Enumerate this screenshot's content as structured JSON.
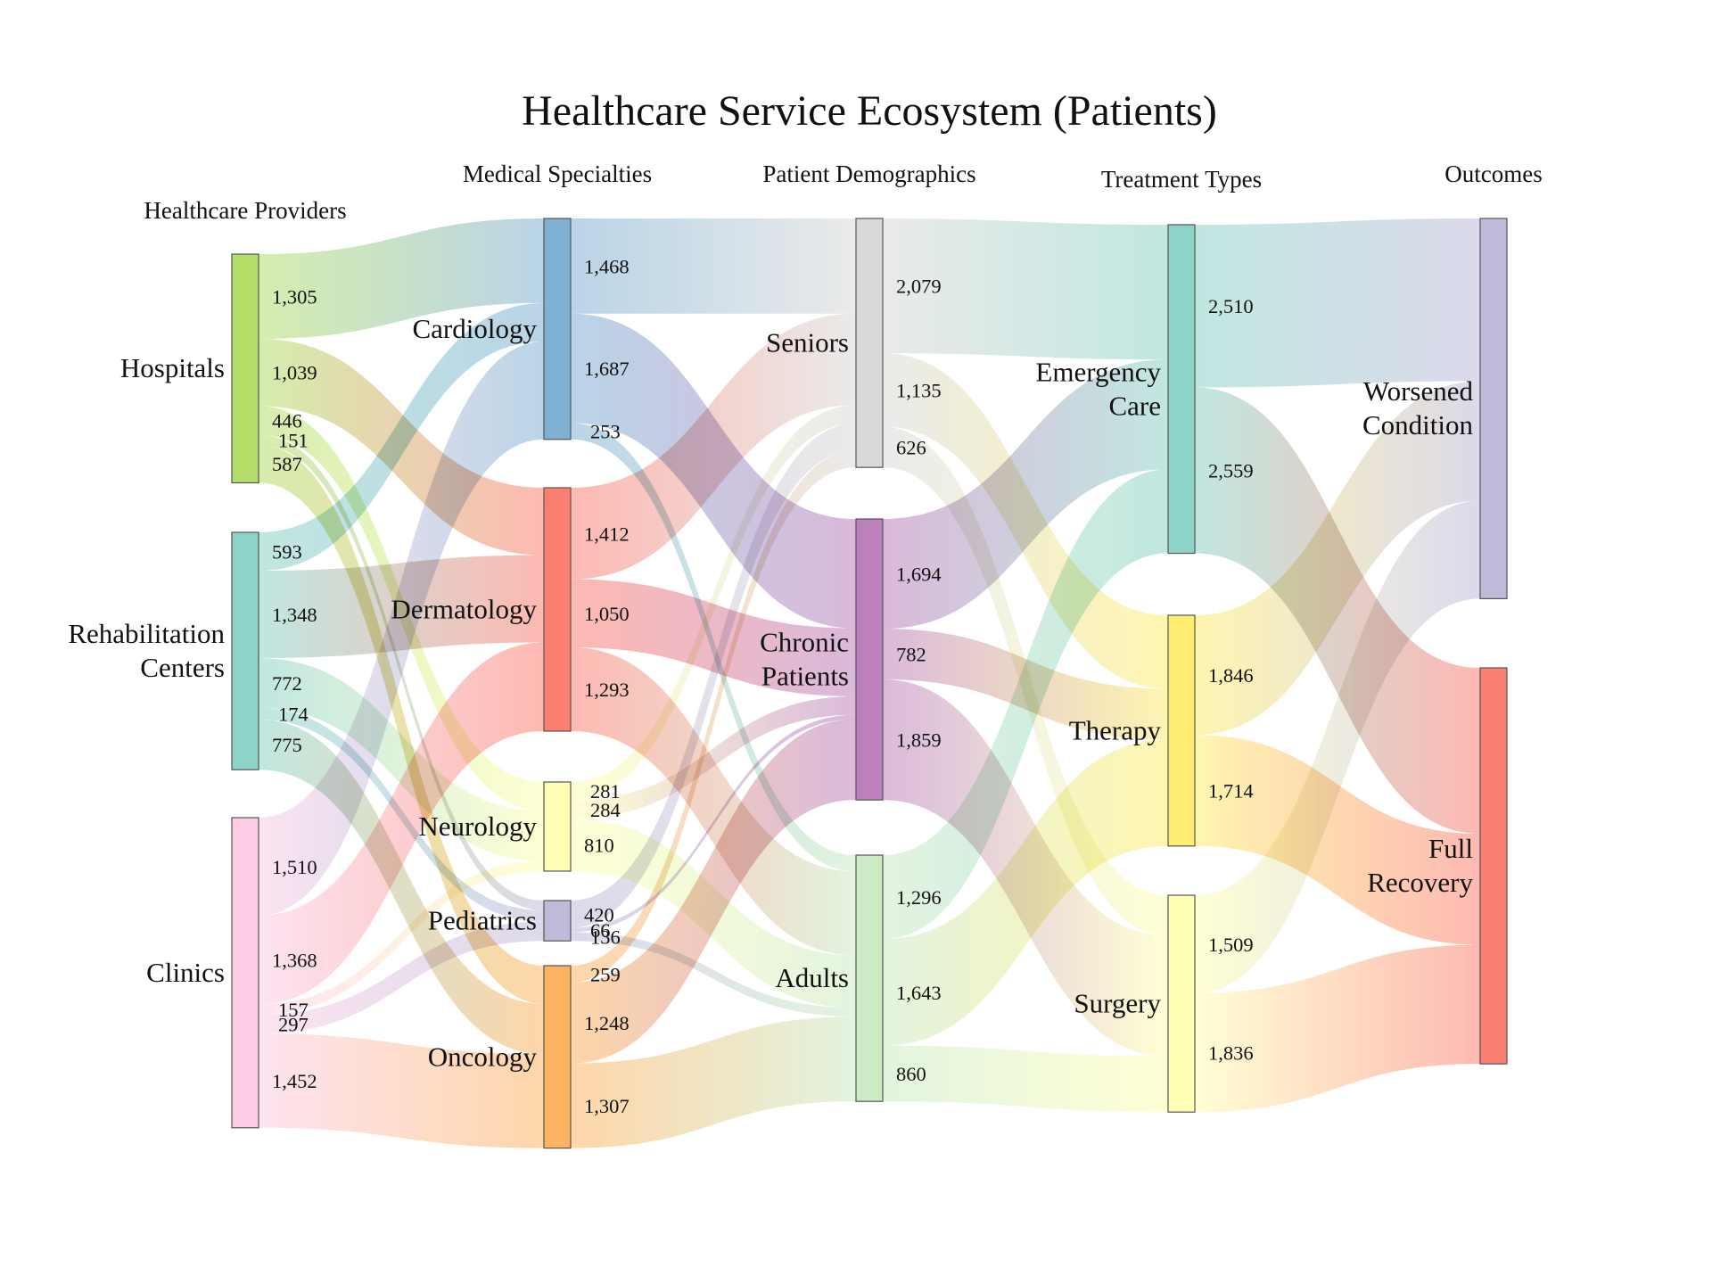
{
  "title": "Healthcare Service Ecosystem (Patients)",
  "column_headers": [
    "Healthcare Providers",
    "Medical Specialties",
    "Patient Demographics",
    "Treatment Types",
    "Outcomes"
  ],
  "nodes": [
    {
      "id": "hospitals",
      "label_lines": [
        "Hospitals"
      ],
      "color": "#b3de69"
    },
    {
      "id": "rehab",
      "label_lines": [
        "Rehabilitation",
        "Centers"
      ],
      "color": "#8dd3c7"
    },
    {
      "id": "clinics",
      "label_lines": [
        "Clinics"
      ],
      "color": "#fccde5"
    },
    {
      "id": "cardiology",
      "label_lines": [
        "Cardiology"
      ],
      "color": "#80b1d3"
    },
    {
      "id": "dermatology",
      "label_lines": [
        "Dermatology"
      ],
      "color": "#fb8072"
    },
    {
      "id": "neurology",
      "label_lines": [
        "Neurology"
      ],
      "color": "#ffffb3"
    },
    {
      "id": "pediatrics",
      "label_lines": [
        "Pediatrics"
      ],
      "color": "#bebada"
    },
    {
      "id": "oncology",
      "label_lines": [
        "Oncology"
      ],
      "color": "#fdb462"
    },
    {
      "id": "seniors",
      "label_lines": [
        "Seniors"
      ],
      "color": "#d9d9d9"
    },
    {
      "id": "chronic",
      "label_lines": [
        "Chronic",
        "Patients"
      ],
      "color": "#bc80bd"
    },
    {
      "id": "adults",
      "label_lines": [
        "Adults"
      ],
      "color": "#ccebc5"
    },
    {
      "id": "emergency",
      "label_lines": [
        "Emergency",
        "Care"
      ],
      "color": "#8dd3c7"
    },
    {
      "id": "therapy",
      "label_lines": [
        "Therapy"
      ],
      "color": "#ffed6f"
    },
    {
      "id": "surgery",
      "label_lines": [
        "Surgery"
      ],
      "color": "#ffffb3"
    },
    {
      "id": "worsened",
      "label_lines": [
        "Worsened",
        "Condition"
      ],
      "color": "#bebada"
    },
    {
      "id": "recovery",
      "label_lines": [
        "Full",
        "Recovery"
      ],
      "color": "#fb8072"
    }
  ],
  "links": [
    {
      "source": "hospitals",
      "target": "cardiology",
      "value": 1305,
      "label": "1,305"
    },
    {
      "source": "hospitals",
      "target": "dermatology",
      "value": 1039,
      "label": "1,039"
    },
    {
      "source": "hospitals",
      "target": "neurology",
      "value": 446,
      "label": "446"
    },
    {
      "source": "hospitals",
      "target": "pediatrics",
      "value": 151,
      "label": "151"
    },
    {
      "source": "hospitals",
      "target": "oncology",
      "value": 587,
      "label": "587"
    },
    {
      "source": "rehab",
      "target": "cardiology",
      "value": 593,
      "label": "593"
    },
    {
      "source": "rehab",
      "target": "dermatology",
      "value": 1348,
      "label": "1,348"
    },
    {
      "source": "rehab",
      "target": "neurology",
      "value": 772,
      "label": "772"
    },
    {
      "source": "rehab",
      "target": "pediatrics",
      "value": 174,
      "label": "174"
    },
    {
      "source": "rehab",
      "target": "oncology",
      "value": 775,
      "label": "775"
    },
    {
      "source": "clinics",
      "target": "cardiology",
      "value": 1510,
      "label": "1,510"
    },
    {
      "source": "clinics",
      "target": "dermatology",
      "value": 1368,
      "label": "1,368"
    },
    {
      "source": "clinics",
      "target": "neurology",
      "value": 157,
      "label": "157"
    },
    {
      "source": "clinics",
      "target": "pediatrics",
      "value": 297,
      "label": "297"
    },
    {
      "source": "clinics",
      "target": "oncology",
      "value": 1452,
      "label": "1,452"
    },
    {
      "source": "cardiology",
      "target": "seniors",
      "value": 1468,
      "label": "1,468"
    },
    {
      "source": "cardiology",
      "target": "chronic",
      "value": 1687,
      "label": "1,687"
    },
    {
      "source": "cardiology",
      "target": "adults",
      "value": 253,
      "label": "253"
    },
    {
      "source": "dermatology",
      "target": "seniors",
      "value": 1412,
      "label": "1,412"
    },
    {
      "source": "dermatology",
      "target": "chronic",
      "value": 1050,
      "label": "1,050"
    },
    {
      "source": "dermatology",
      "target": "adults",
      "value": 1293,
      "label": "1,293"
    },
    {
      "source": "neurology",
      "target": "seniors",
      "value": 281,
      "label": "281"
    },
    {
      "source": "neurology",
      "target": "chronic",
      "value": 284,
      "label": "284"
    },
    {
      "source": "neurology",
      "target": "adults",
      "value": 810,
      "label": "810"
    },
    {
      "source": "pediatrics",
      "target": "seniors",
      "value": 420,
      "label": "420"
    },
    {
      "source": "pediatrics",
      "target": "chronic",
      "value": 66,
      "label": "66"
    },
    {
      "source": "pediatrics",
      "target": "adults",
      "value": 136,
      "label": "136"
    },
    {
      "source": "oncology",
      "target": "seniors",
      "value": 259,
      "label": "259"
    },
    {
      "source": "oncology",
      "target": "chronic",
      "value": 1248,
      "label": "1,248"
    },
    {
      "source": "oncology",
      "target": "adults",
      "value": 1307,
      "label": "1,307"
    },
    {
      "source": "seniors",
      "target": "emergency",
      "value": 2079,
      "label": "2,079"
    },
    {
      "source": "seniors",
      "target": "therapy",
      "value": 1135,
      "label": "1,135"
    },
    {
      "source": "seniors",
      "target": "surgery",
      "value": 626,
      "label": "626"
    },
    {
      "source": "chronic",
      "target": "emergency",
      "value": 1694,
      "label": "1,694"
    },
    {
      "source": "chronic",
      "target": "therapy",
      "value": 782,
      "label": "782"
    },
    {
      "source": "chronic",
      "target": "surgery",
      "value": 1859,
      "label": "1,859"
    },
    {
      "source": "adults",
      "target": "emergency",
      "value": 1296,
      "label": "1,296"
    },
    {
      "source": "adults",
      "target": "therapy",
      "value": 1643,
      "label": "1,643"
    },
    {
      "source": "adults",
      "target": "surgery",
      "value": 860,
      "label": "860"
    },
    {
      "source": "emergency",
      "target": "worsened",
      "value": 2510,
      "label": "2,510"
    },
    {
      "source": "emergency",
      "target": "recovery",
      "value": 2559,
      "label": "2,559"
    },
    {
      "source": "therapy",
      "target": "worsened",
      "value": 1846,
      "label": "1,846"
    },
    {
      "source": "therapy",
      "target": "recovery",
      "value": 1714,
      "label": "1,714"
    },
    {
      "source": "surgery",
      "target": "worsened",
      "value": 1509,
      "label": "1,509"
    },
    {
      "source": "surgery",
      "target": "recovery",
      "value": 1836,
      "label": "1,836"
    }
  ]
}
